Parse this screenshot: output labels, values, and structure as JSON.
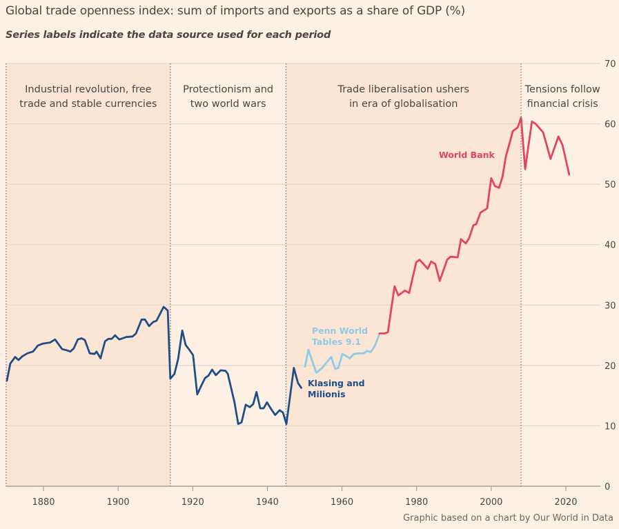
{
  "title": "Global trade openness index: sum of imports and exports as a share of GDP (%)",
  "subtitle": "Series labels indicate the data source used for each period",
  "footer": "Graphic based on a chart by Our World in Data",
  "colors": {
    "background": "#fdf1e6",
    "shaded": "#fbe5d5",
    "klasing": "#1f4e87",
    "penn": "#8fcbe6",
    "worldbank": "#e5435e",
    "grid": "#e2d6cc"
  },
  "chart_data": {
    "type": "line",
    "title": "Global trade openness index: sum of imports and exports as a share of GDP (%)",
    "xlabel": "",
    "ylabel": "",
    "xlim": [
      1870,
      2028
    ],
    "ylim": [
      0,
      70
    ],
    "x_ticks": [
      "1880",
      "1900",
      "1920",
      "1940",
      "1960",
      "1980",
      "2000",
      "2020"
    ],
    "y_ticks": [
      "0",
      "10",
      "20",
      "30",
      "40",
      "50",
      "60",
      "70"
    ],
    "grid": "horizontal",
    "periods": [
      {
        "start": 1870,
        "end": 1914,
        "label_lines": [
          "Industrial revolution, free",
          "trade and stable currencies"
        ],
        "shaded": true
      },
      {
        "start": 1914,
        "end": 1945,
        "label_lines": [
          "Protectionism and",
          "two world wars"
        ],
        "shaded": false
      },
      {
        "start": 1945,
        "end": 2008,
        "label_lines": [
          "Trade liberalisation ushers",
          "in era of globalisation"
        ],
        "shaded": true
      },
      {
        "start": 2008,
        "end": 2028,
        "label_lines": [
          "Tensions follow",
          "financial crisis"
        ],
        "shaded": false
      }
    ],
    "series": [
      {
        "name": "Klasing and Milionis",
        "label_lines": [
          "Klasing and",
          "Milionis"
        ],
        "color": "#1f4e87",
        "x": [
          1870.2,
          1871.1,
          1872.4,
          1873.3,
          1874.3,
          1875.7,
          1877.2,
          1878.5,
          1879.8,
          1881.8,
          1883.1,
          1885,
          1886.3,
          1887.2,
          1888.1,
          1889.2,
          1890.2,
          1891.1,
          1892.4,
          1893.7,
          1894.2,
          1895.3,
          1896.5,
          1897.4,
          1898.3,
          1899.2,
          1900.3,
          1902.2,
          1903.9,
          1904.8,
          1906.3,
          1907.2,
          1908.3,
          1909.4,
          1910.3,
          1912.2,
          1913.3,
          1914,
          1915.1,
          1916.1,
          1917.2,
          1918.1,
          1919.2,
          1920.1,
          1921.2,
          1922.4,
          1923.3,
          1924.2,
          1925.2,
          1926.2,
          1927.5,
          1928.8,
          1929.4,
          1931.2,
          1932.2,
          1933.1,
          1934.2,
          1935.3,
          1936.2,
          1937.1,
          1938.1,
          1939,
          1939.9,
          1941,
          1942.1,
          1943.3,
          1944.2,
          1945.1,
          1947.1,
          1948.2,
          1949.1
        ],
        "y": [
          17.5,
          20.3,
          21.4,
          20.9,
          21.5,
          22,
          22.3,
          23.3,
          23.6,
          23.8,
          24.3,
          22.7,
          22.5,
          22.3,
          22.8,
          24.3,
          24.5,
          24.2,
          22,
          21.9,
          22.3,
          21.2,
          24,
          24.4,
          24.4,
          25,
          24.3,
          24.7,
          24.8,
          25.3,
          27.6,
          27.6,
          26.5,
          27.2,
          27.4,
          29.7,
          29.1,
          17.8,
          18.6,
          21.1,
          25.8,
          23.4,
          22.5,
          21.7,
          15.2,
          16.8,
          17.9,
          18.3,
          19.3,
          18.4,
          19.2,
          19.1,
          18.6,
          13.9,
          10.3,
          10.6,
          13.5,
          13.1,
          13.6,
          15.6,
          12.9,
          12.9,
          13.9,
          12.8,
          11.8,
          12.6,
          12.2,
          10.3,
          19.6,
          17.1,
          16.3
        ]
      },
      {
        "name": "Penn World Tables 9.1",
        "label_lines": [
          "Penn World",
          "Tables 9.1"
        ],
        "color": "#8fcbe6",
        "x": [
          1950.1,
          1951,
          1953.1,
          1954.7,
          1957.1,
          1958.2,
          1959,
          1960.1,
          1962.1,
          1963.2,
          1964.5,
          1965.8,
          1966.7,
          1967.7,
          1968.8,
          1970.1
        ],
        "y": [
          19.8,
          22.6,
          18.8,
          19.6,
          21.4,
          19.4,
          19.6,
          21.9,
          21.2,
          21.9,
          22,
          22,
          22.4,
          22.2,
          23.2,
          25.3
        ]
      },
      {
        "name": "World Bank",
        "label_lines": [
          "World Bank"
        ],
        "color": "#e5435e",
        "x": [
          1970.1,
          1971.5,
          1972.3,
          1974.1,
          1975.1,
          1976.9,
          1978,
          1979.9,
          1980.8,
          1983,
          1983.9,
          1985,
          1986.2,
          1988.2,
          1989.1,
          1991,
          1991.9,
          1993.2,
          1994.1,
          1995.2,
          1996,
          1997.1,
          1998.9,
          2000,
          2001,
          2002.1,
          2003,
          2003.9,
          2005.8,
          2007.1,
          2008,
          2009.1,
          2010.9,
          2011.9,
          2013.9,
          2015.9,
          2018,
          2019.1,
          2020.9
        ],
        "y": [
          25.3,
          25.3,
          25.5,
          33.1,
          31.6,
          32.4,
          32,
          37.1,
          37.5,
          36,
          37.2,
          36.8,
          34,
          37.5,
          38,
          37.9,
          40.9,
          40.2,
          41.1,
          43.2,
          43.4,
          45.3,
          46,
          51,
          49.7,
          49.4,
          51.2,
          54.5,
          58.8,
          59.4,
          61,
          52.5,
          60.4,
          60,
          58.6,
          54.2,
          57.9,
          56.5,
          51.6
        ]
      }
    ]
  }
}
